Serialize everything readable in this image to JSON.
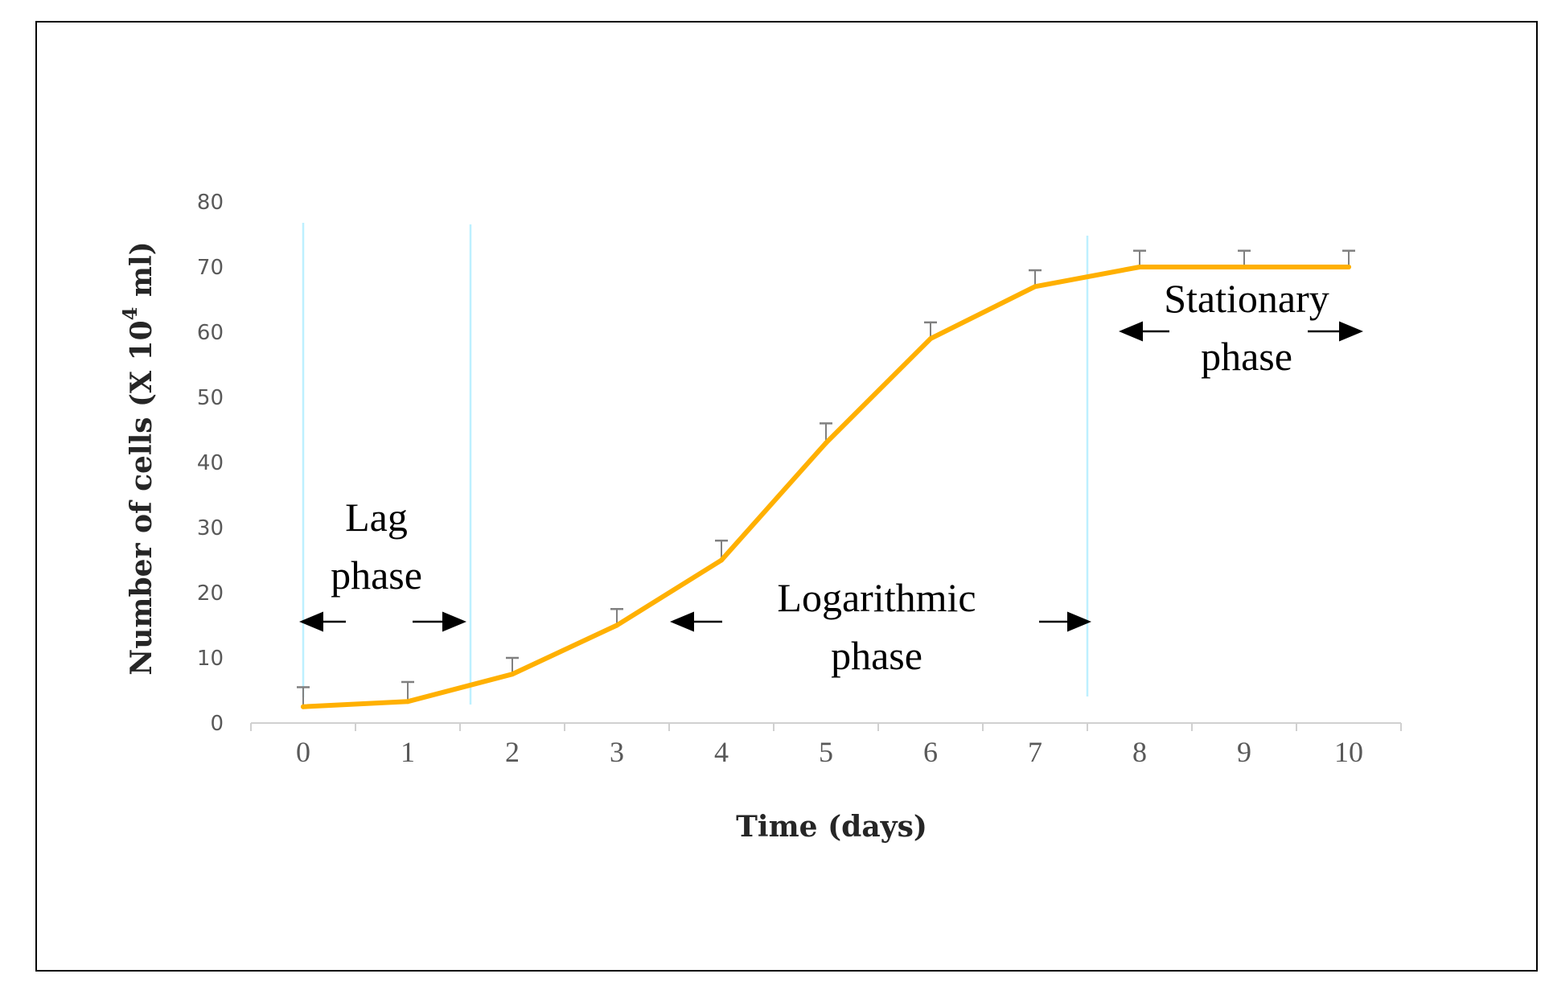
{
  "chart_data": {
    "type": "line",
    "x": [
      0,
      1,
      2,
      3,
      4,
      5,
      6,
      7,
      8,
      9,
      10
    ],
    "series": [
      {
        "values": [
          2.5,
          3.3,
          7.5,
          15,
          25,
          43,
          59,
          67,
          70,
          70,
          70
        ],
        "error": [
          3,
          3,
          2.5,
          2.5,
          3,
          3,
          2.5,
          2.5,
          2.5,
          2.5,
          2.5
        ],
        "color": "#FFB000"
      }
    ],
    "xlabel": "Time (days)",
    "ylabel": {
      "main": "Number of cells (X 10",
      "superscript": "4",
      "suffix": " ml)"
    },
    "xlim": [
      -0.5,
      10.5
    ],
    "ylim": [
      0,
      80
    ],
    "yticks": [
      0,
      10,
      20,
      30,
      40,
      50,
      60,
      70,
      80
    ],
    "xticks": [
      0,
      1,
      2,
      3,
      4,
      5,
      6,
      7,
      8,
      9,
      10
    ],
    "grid": false,
    "phase_boundaries": [
      0,
      1.6,
      7.5
    ],
    "boundary_color": "#BDF0FF",
    "annotations": [
      {
        "id": "lag",
        "lines": [
          "Lag",
          "phase"
        ],
        "arrow_from": 0,
        "arrow_to": 1.6
      },
      {
        "id": "log",
        "lines": [
          "Logarithmic",
          "phase"
        ],
        "arrow_from": 3.5,
        "arrow_to": 7.5
      },
      {
        "id": "stationary",
        "lines": [
          "Stationary",
          "phase"
        ],
        "arrow_from": 7.8,
        "arrow_to": 10.1
      }
    ]
  }
}
